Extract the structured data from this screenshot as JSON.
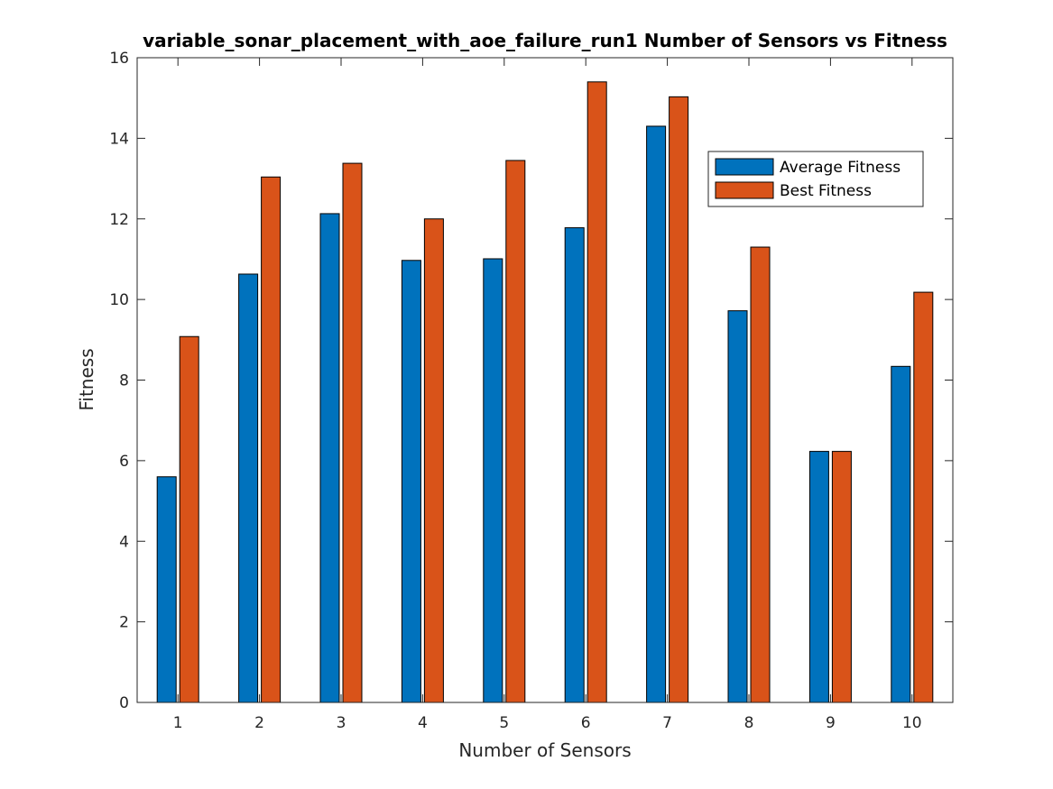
{
  "chart_data": {
    "type": "bar",
    "title": "variable_sonar_placement_with_aoe_failure_run1 Number of Sensors vs Fitness",
    "xlabel": "Number of Sensors",
    "ylabel": "Fitness",
    "categories": [
      "1",
      "2",
      "3",
      "4",
      "5",
      "6",
      "7",
      "8",
      "9",
      "10"
    ],
    "ylim": [
      0,
      16
    ],
    "yticks": [
      "0",
      "2",
      "4",
      "6",
      "8",
      "10",
      "12",
      "14",
      "16"
    ],
    "grid": false,
    "legend_position": "top-right",
    "series": [
      {
        "name": "Average Fitness",
        "color": "#0072BD",
        "values": [
          5.6,
          10.63,
          12.13,
          10.97,
          11.01,
          11.78,
          14.3,
          9.72,
          6.23,
          8.34
        ]
      },
      {
        "name": "Best Fitness",
        "color": "#D95319",
        "values": [
          9.08,
          13.04,
          13.38,
          12.0,
          13.45,
          15.4,
          15.03,
          11.3,
          6.23,
          10.18
        ]
      }
    ]
  }
}
